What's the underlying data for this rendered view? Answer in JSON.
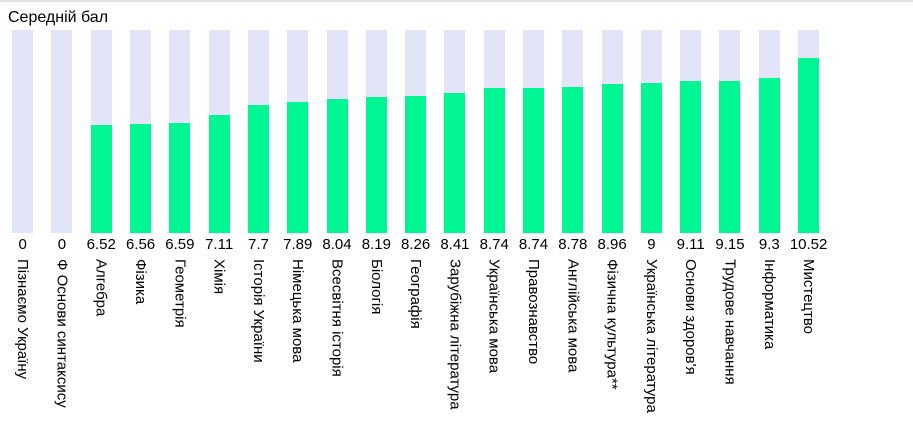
{
  "title": "Середній бал",
  "colors": {
    "bar_fill": "#00F593",
    "bar_track": "#E4E4F8",
    "top_border": "#DFE1E5",
    "text": "#000000",
    "background": "#FFFFFF"
  },
  "chart_data": {
    "type": "bar",
    "title": "Середній бал",
    "xlabel": "",
    "ylabel": "",
    "ylim": [
      0,
      12.2
    ],
    "grid": false,
    "legend": "none",
    "orientation": "vertical",
    "bar_background_track": true,
    "categories": [
      "Пізнаємо Україну",
      "Ф Основи синтаксису",
      "Алгебра",
      "Фізика",
      "Геометрія",
      "Хімія",
      "Історія України",
      "Німецька мова",
      "Всесвітня історія",
      "Біологія",
      "Географія",
      "Зарубіжна література",
      "Українська мова",
      "Правознавство",
      "Англійська мова",
      "Фізична культура**",
      "Українська література",
      "Основи здоров'я",
      "Трудове навчання",
      "Інформатика",
      "Мистецтво"
    ],
    "values": [
      0,
      0,
      6.52,
      6.56,
      6.59,
      7.11,
      7.7,
      7.89,
      8.04,
      8.19,
      8.26,
      8.41,
      8.74,
      8.74,
      8.78,
      8.96,
      9,
      9.11,
      9.15,
      9.3,
      10.52
    ],
    "value_labels": [
      "0",
      "0",
      "6.52",
      "6.56",
      "6.59",
      "7.11",
      "7.7",
      "7.89",
      "8.04",
      "8.19",
      "8.26",
      "8.41",
      "8.74",
      "8.74",
      "8.78",
      "8.96",
      "9",
      "9.11",
      "9.15",
      "9.3",
      "10.52"
    ]
  }
}
